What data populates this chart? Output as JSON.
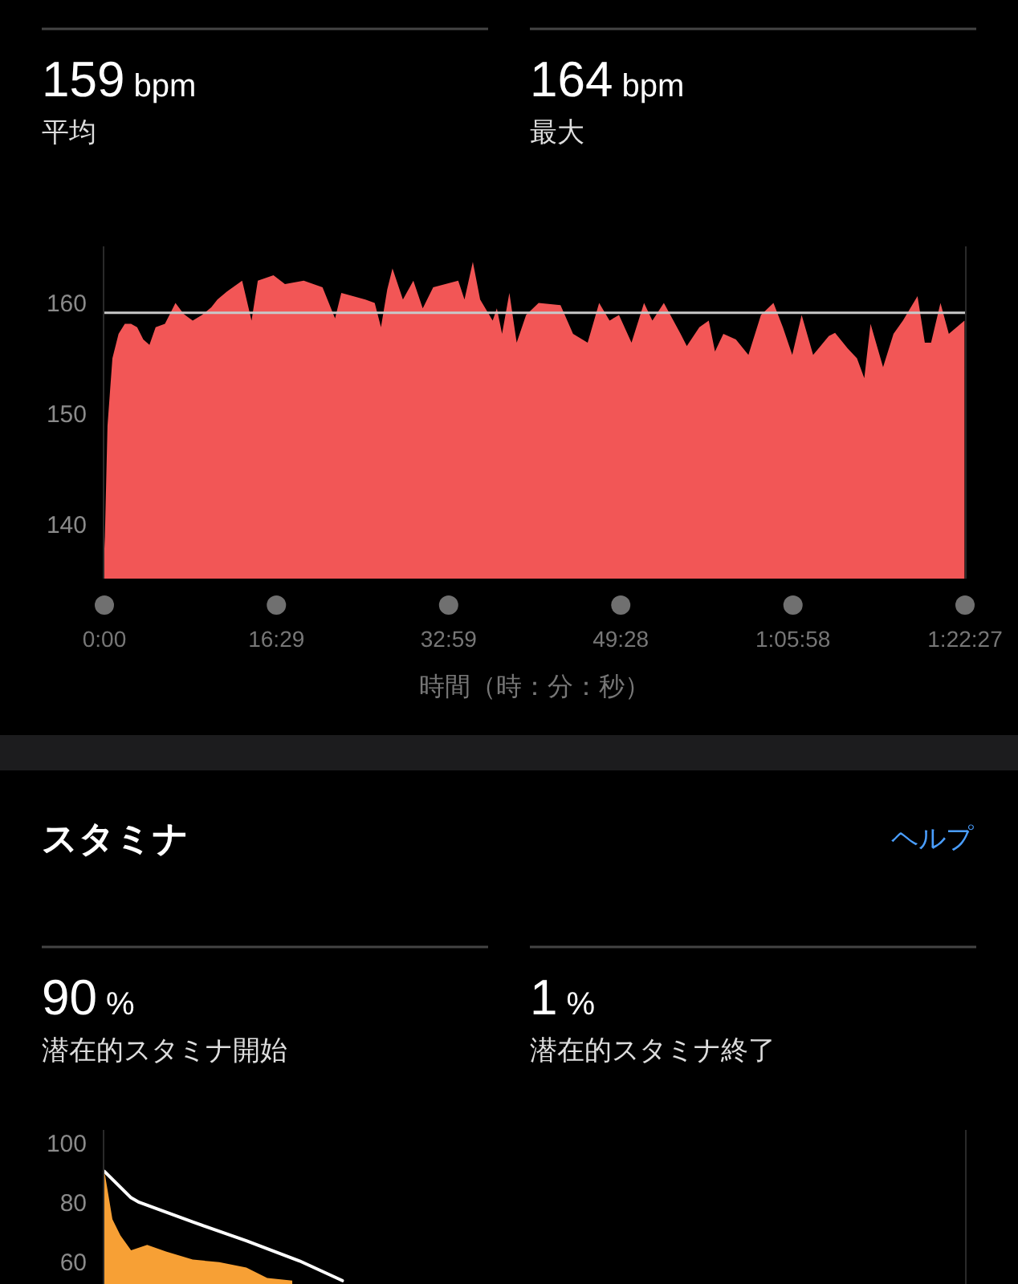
{
  "chart_data": [
    {
      "type": "other",
      "annotations": [
        "159 bpm",
        "平均",
        "164 bpm",
        "最大"
      ]
    },
    {
      "type": "area",
      "color": "#f25656",
      "xlabel": "時間（時：分：秒）",
      "x": [
        0,
        0.05,
        0.3,
        0.77,
        1.36,
        1.96,
        2.55,
        3.14,
        3.73,
        4.32,
        4.91,
        5.8,
        6.39,
        6.81,
        7.6,
        8.46,
        9.35,
        10.24,
        10.83,
        11.72,
        13.2,
        14.1,
        14.7,
        16.2,
        17.3,
        19.1,
        20.9,
        22.1,
        22.7,
        25.0,
        25.9,
        26.5,
        27.1,
        27.6,
        28.6,
        29.6,
        30.5,
        31.5,
        33.9,
        34.5,
        35.3,
        36.0,
        37.2,
        37.6,
        38.1,
        38.8,
        39.5,
        40.4,
        41.6,
        43.7,
        44.9,
        46.3,
        47.4,
        48.4,
        49.3,
        50.5,
        51.7,
        52.5,
        53.6,
        55.2,
        55.8,
        57.0,
        57.9,
        58.5,
        59.3,
        60.5,
        61.7,
        62.9,
        64.1,
        65.0,
        65.9,
        66.8,
        67.9,
        69.4,
        70.0,
        71.2,
        72.1,
        72.8,
        73.4,
        74.6,
        75.6,
        76.5,
        77.9,
        78.6,
        79.2,
        80.1,
        80.9,
        82.4
      ],
      "values": [
        137.7,
        138.8,
        148.8,
        154.9,
        157.1,
        158.0,
        158.0,
        157.7,
        156.6,
        156.1,
        157.7,
        158.0,
        159.1,
        159.9,
        158.9,
        158.3,
        158.8,
        159.5,
        160.2,
        160.9,
        161.9,
        158.3,
        161.9,
        162.4,
        161.6,
        161.9,
        161.3,
        158.5,
        160.8,
        160.2,
        159.9,
        157.7,
        161.1,
        163.0,
        160.2,
        161.9,
        159.4,
        161.3,
        161.9,
        160.2,
        163.6,
        160.2,
        158.3,
        159.4,
        157.1,
        160.8,
        156.3,
        158.8,
        159.9,
        159.7,
        157.1,
        156.3,
        159.9,
        158.3,
        158.8,
        156.3,
        159.9,
        158.3,
        159.9,
        157.1,
        156.0,
        157.7,
        158.3,
        155.5,
        157.1,
        156.6,
        155.2,
        158.8,
        159.9,
        157.7,
        155.2,
        158.8,
        155.2,
        156.9,
        157.2,
        155.8,
        154.9,
        153.1,
        158.0,
        154.1,
        157.1,
        158.3,
        160.5,
        156.3,
        156.3,
        159.9,
        157.1,
        158.3
      ],
      "xlim": [
        0,
        82.45
      ],
      "xticks": [
        {
          "value": 0,
          "label": "0:00"
        },
        {
          "value": 16.48,
          "label": "16:29"
        },
        {
          "value": 32.98,
          "label": "32:59"
        },
        {
          "value": 49.47,
          "label": "49:28"
        },
        {
          "value": 65.97,
          "label": "1:05:58"
        },
        {
          "value": 82.45,
          "label": "1:22:27"
        }
      ],
      "ylim": [
        135,
        165
      ],
      "yticks": [
        140,
        150,
        160
      ],
      "ref_lines": [
        {
          "axis": "y",
          "value": 159,
          "color": "#c8c8c8"
        }
      ]
    },
    {
      "type": "other",
      "title": "スタミナ",
      "annotations": [
        "ヘルプ",
        "90 %",
        "潜在的スタミナ開始",
        "1 %",
        "潜在的スタミナ終了"
      ]
    },
    {
      "type": "area",
      "xlim": [
        0,
        82.45
      ],
      "ylim": [
        52,
        104
      ],
      "yticks": [
        60,
        80,
        100
      ],
      "tick_labels": "y",
      "series": [
        {
          "type": "area",
          "color": "#f7a035",
          "x": [
            0,
            0.26,
            0.77,
            1.54,
            2.56,
            4.1,
            5.9,
            8.46,
            11.0,
            13.6,
            15.6,
            18.0
          ],
          "values": [
            90.1,
            84.8,
            74.0,
            68.6,
            63.6,
            65.4,
            63.2,
            60.5,
            59.6,
            57.8,
            54.3,
            53.4
          ]
        },
        {
          "type": "line",
          "color": "#ffffff",
          "x": [
            0,
            2.56,
            3.33,
            8.46,
            13.6,
            18.7,
            22.8
          ],
          "values": [
            90.1,
            81.2,
            79.7,
            73.1,
            66.8,
            60.0,
            53.4
          ]
        }
      ]
    }
  ]
}
